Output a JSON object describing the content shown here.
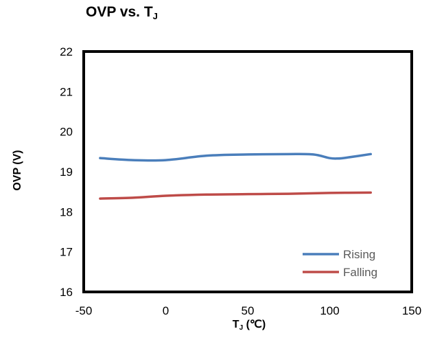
{
  "chart_data": {
    "type": "line",
    "title": "OVP vs. T",
    "title_subscript": "J",
    "xlabel_main": "T",
    "xlabel_subscript": "J",
    "xlabel_unit": " (℃)",
    "ylabel": "OVP (V)",
    "xlim": [
      -50,
      150
    ],
    "ylim": [
      16,
      22
    ],
    "xticks": [
      -50,
      0,
      50,
      100,
      150
    ],
    "yticks": [
      16,
      17,
      18,
      19,
      20,
      21,
      22
    ],
    "grid": false,
    "legend_position": "bottom-right",
    "series": [
      {
        "name": "Rising",
        "color": "#4a7ebb",
        "x": [
          -40,
          -20,
          0,
          25,
          50,
          75,
          90,
          100,
          105,
          110,
          125
        ],
        "y": [
          19.34,
          19.29,
          19.29,
          19.4,
          19.43,
          19.44,
          19.43,
          19.34,
          19.33,
          19.35,
          19.44
        ]
      },
      {
        "name": "Falling",
        "color": "#be4b48",
        "x": [
          -40,
          -20,
          0,
          25,
          50,
          75,
          100,
          125
        ],
        "y": [
          18.33,
          18.35,
          18.4,
          18.43,
          18.44,
          18.45,
          18.47,
          18.48
        ]
      }
    ]
  }
}
